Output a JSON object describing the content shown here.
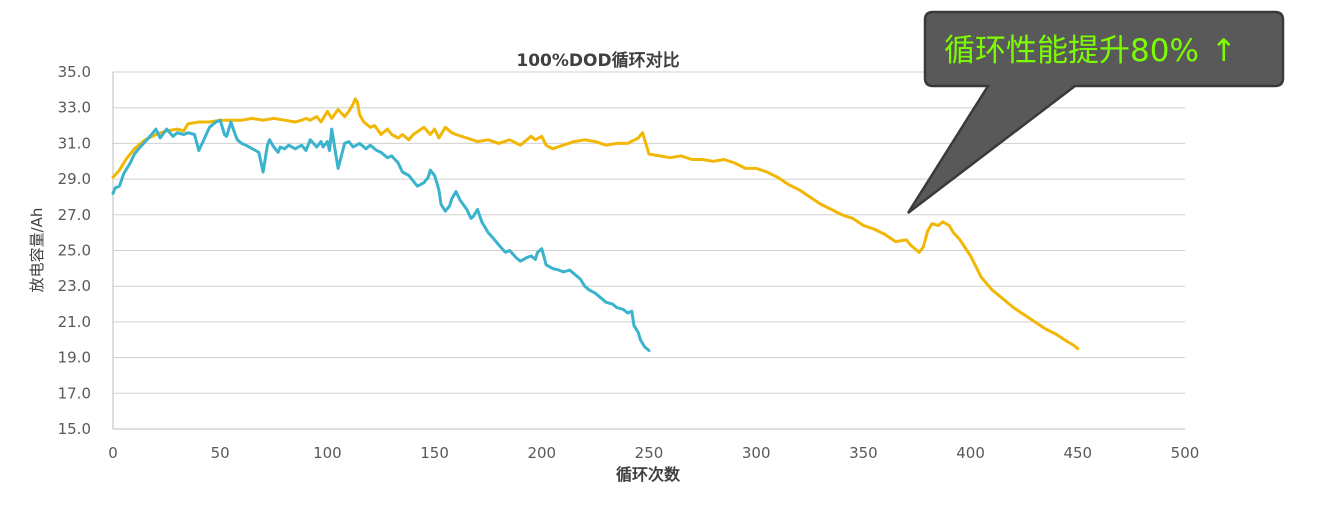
{
  "chart_data": {
    "type": "line",
    "title": "100%DOD循环对比",
    "xlabel": "循环次数",
    "ylabel": "放电容量/Ah",
    "xlim": [
      0,
      500
    ],
    "ylim": [
      15.0,
      35.0
    ],
    "xticks": [
      "0",
      "50",
      "100",
      "150",
      "200",
      "250",
      "300",
      "350",
      "400",
      "450",
      "500"
    ],
    "yticks": [
      "15.0",
      "17.0",
      "19.0",
      "21.0",
      "23.0",
      "25.0",
      "27.0",
      "29.0",
      "31.0",
      "33.0",
      "35.0"
    ],
    "grid": "horizontal",
    "series": [
      {
        "color": "#F2B705",
        "x": [
          0,
          3,
          6,
          10,
          15,
          20,
          25,
          30,
          33,
          35,
          40,
          45,
          50,
          55,
          60,
          65,
          70,
          75,
          80,
          85,
          88,
          90,
          92,
          95,
          97,
          100,
          102,
          105,
          108,
          110,
          112,
          113,
          114,
          115,
          117,
          120,
          122,
          125,
          128,
          130,
          133,
          135,
          138,
          140,
          145,
          148,
          150,
          152,
          155,
          158,
          160,
          165,
          170,
          175,
          180,
          185,
          190,
          195,
          197,
          200,
          202,
          205,
          210,
          215,
          220,
          225,
          230,
          235,
          240,
          245,
          247,
          248,
          250,
          255,
          260,
          265,
          270,
          275,
          280,
          285,
          290,
          295,
          300,
          305,
          310,
          315,
          320,
          325,
          330,
          335,
          340,
          345,
          350,
          355,
          360,
          365,
          370,
          372,
          375,
          376,
          378,
          380,
          382,
          385,
          387,
          390,
          392,
          395,
          400,
          405,
          410,
          415,
          420,
          425,
          430,
          435,
          440,
          445,
          448,
          450
        ],
        "y": [
          29.1,
          29.5,
          30.1,
          30.7,
          31.2,
          31.5,
          31.7,
          31.8,
          31.7,
          32.1,
          32.2,
          32.2,
          32.3,
          32.3,
          32.3,
          32.4,
          32.3,
          32.4,
          32.3,
          32.2,
          32.3,
          32.4,
          32.3,
          32.5,
          32.2,
          32.8,
          32.4,
          32.9,
          32.5,
          32.8,
          33.2,
          33.5,
          33.3,
          32.6,
          32.2,
          31.9,
          32.0,
          31.5,
          31.8,
          31.5,
          31.3,
          31.5,
          31.2,
          31.5,
          31.9,
          31.5,
          31.8,
          31.3,
          31.9,
          31.6,
          31.5,
          31.3,
          31.1,
          31.2,
          31.0,
          31.2,
          30.9,
          31.4,
          31.2,
          31.4,
          30.9,
          30.7,
          30.9,
          31.1,
          31.2,
          31.1,
          30.9,
          31.0,
          31.0,
          31.3,
          31.6,
          31.2,
          30.4,
          30.3,
          30.2,
          30.3,
          30.1,
          30.1,
          30.0,
          30.1,
          29.9,
          29.6,
          29.6,
          29.4,
          29.1,
          28.7,
          28.4,
          28.0,
          27.6,
          27.3,
          27.0,
          26.8,
          26.4,
          26.2,
          25.9,
          25.5,
          25.6,
          25.3,
          25.0,
          24.9,
          25.2,
          26.1,
          26.5,
          26.4,
          26.6,
          26.4,
          26.0,
          25.6,
          24.7,
          23.5,
          22.8,
          22.3,
          21.8,
          21.4,
          21.0,
          20.6,
          20.3,
          19.9,
          19.7,
          19.5
        ]
      },
      {
        "color": "#3BB3CC",
        "x": [
          0,
          1,
          3,
          5,
          8,
          10,
          12,
          15,
          18,
          20,
          22,
          25,
          28,
          30,
          33,
          35,
          38,
          40,
          42,
          45,
          48,
          50,
          52,
          53,
          55,
          57,
          58,
          60,
          62,
          65,
          68,
          70,
          72,
          73,
          75,
          77,
          78,
          80,
          82,
          85,
          88,
          90,
          92,
          95,
          97,
          98,
          100,
          101,
          102,
          105,
          108,
          110,
          112,
          115,
          118,
          120,
          123,
          125,
          128,
          130,
          133,
          135,
          138,
          140,
          142,
          145,
          147,
          148,
          150,
          152,
          153,
          155,
          157,
          158,
          160,
          162,
          165,
          167,
          168,
          170,
          172,
          175,
          178,
          180,
          183,
          185,
          188,
          190,
          193,
          195,
          197,
          198,
          200,
          202,
          205,
          208,
          210,
          213,
          215,
          218,
          220,
          222,
          225,
          228,
          230,
          233,
          235,
          238,
          240,
          242,
          243,
          245,
          246,
          248,
          250
        ],
        "y": [
          28.2,
          28.5,
          28.6,
          29.3,
          29.9,
          30.4,
          30.7,
          31.1,
          31.5,
          31.8,
          31.3,
          31.8,
          31.4,
          31.6,
          31.5,
          31.6,
          31.5,
          30.6,
          31.1,
          31.9,
          32.2,
          32.3,
          31.5,
          31.4,
          32.2,
          31.5,
          31.2,
          31.0,
          30.9,
          30.7,
          30.5,
          29.4,
          30.9,
          31.2,
          30.8,
          30.5,
          30.8,
          30.7,
          30.9,
          30.7,
          30.9,
          30.6,
          31.2,
          30.8,
          31.1,
          30.8,
          31.1,
          30.6,
          31.8,
          29.6,
          31.0,
          31.1,
          30.8,
          31.0,
          30.7,
          30.9,
          30.6,
          30.5,
          30.2,
          30.3,
          29.9,
          29.4,
          29.2,
          28.9,
          28.6,
          28.8,
          29.1,
          29.5,
          29.2,
          28.4,
          27.6,
          27.2,
          27.5,
          27.9,
          28.3,
          27.8,
          27.3,
          26.8,
          26.9,
          27.3,
          26.6,
          26.0,
          25.6,
          25.3,
          24.9,
          25.0,
          24.6,
          24.4,
          24.6,
          24.7,
          24.5,
          24.9,
          25.1,
          24.2,
          24.0,
          23.9,
          23.8,
          23.9,
          23.7,
          23.4,
          23.0,
          22.8,
          22.6,
          22.3,
          22.1,
          22.0,
          21.8,
          21.7,
          21.5,
          21.6,
          20.8,
          20.4,
          20.0,
          19.6,
          19.4
        ]
      }
    ]
  },
  "callout": {
    "text": "循环性能提升80%",
    "arrow": "↑",
    "bg_color": "#595959",
    "text_color": "#7CFC00"
  }
}
